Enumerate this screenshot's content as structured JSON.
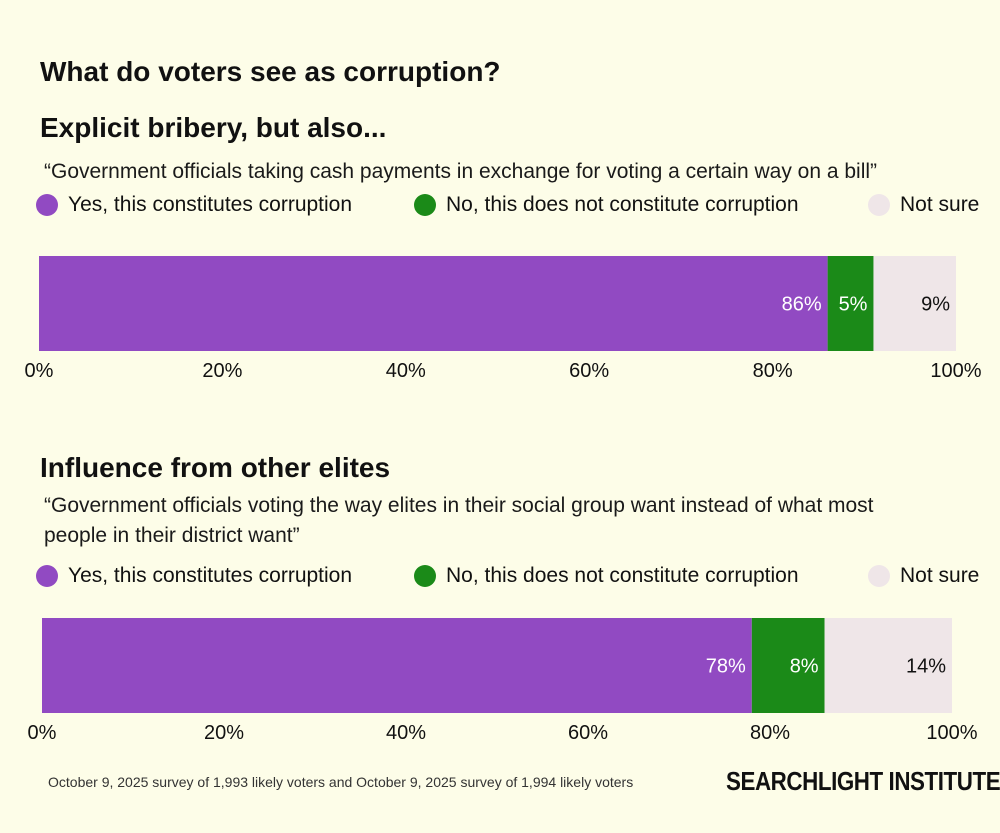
{
  "title": "What do voters see as corruption?",
  "colors": {
    "yes": "#914ac2",
    "no": "#1b8a18",
    "unsure": "#efe6e8",
    "background": "#fdfde8"
  },
  "chart_data": [
    {
      "type": "bar",
      "orientation": "horizontal-stacked",
      "title": "Explicit bribery, but also...",
      "subtitle": "“Government officials taking cash payments in exchange for voting a certain way on a bill”",
      "legend": [
        "Yes, this constitutes corruption",
        "No, this does not constitute corruption",
        "Not sure"
      ],
      "series": [
        {
          "name": "Yes, this constitutes corruption",
          "value": 86,
          "label": "86%"
        },
        {
          "name": "No, this does not constitute corruption",
          "value": 5,
          "label": "5%"
        },
        {
          "name": "Not sure",
          "value": 9,
          "label": "9%"
        }
      ],
      "xlim": [
        0,
        100
      ],
      "xticks": [
        "0%",
        "20%",
        "40%",
        "60%",
        "80%",
        "100%"
      ]
    },
    {
      "type": "bar",
      "orientation": "horizontal-stacked",
      "title": "Influence from other elites",
      "subtitle_lines": [
        "“Government officials voting the way elites in their social group want instead of what most",
        "people in their district want”"
      ],
      "legend": [
        "Yes, this constitutes corruption",
        "No, this does not constitute corruption",
        "Not sure"
      ],
      "series": [
        {
          "name": "Yes, this constitutes corruption",
          "value": 78,
          "label": "78%"
        },
        {
          "name": "No, this does not constitute corruption",
          "value": 8,
          "label": "8%"
        },
        {
          "name": "Not sure",
          "value": 14,
          "label": "14%"
        }
      ],
      "xlim": [
        0,
        100
      ],
      "xticks": [
        "0%",
        "20%",
        "40%",
        "60%",
        "80%",
        "100%"
      ]
    }
  ],
  "footer": {
    "source": "October 9, 2025 survey of 1,993 likely voters and October 9, 2025 survey of 1,994 likely voters",
    "logo": "SEARCHLIGHT INSTITUTE"
  }
}
